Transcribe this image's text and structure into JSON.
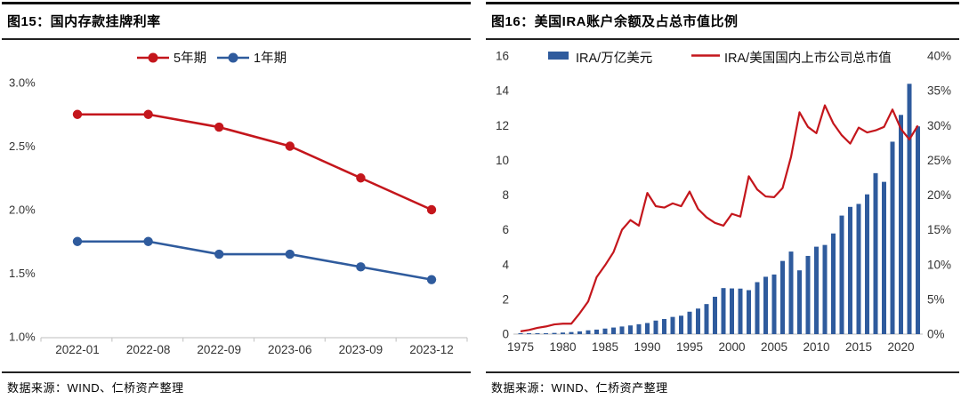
{
  "panels": {
    "fig15": {
      "title": "图15：国内存款挂牌利率",
      "source": "数据来源：WIND、仁桥资产整理"
    },
    "fig16": {
      "title": "图16：美国IRA账户余额及占总市值比例",
      "source": "数据来源：WIND、仁桥资产整理"
    }
  },
  "colors": {
    "red": "#c4161c",
    "blue": "#2f5b9d",
    "axis_text": "#333333",
    "axis_line": "#c9c9c9"
  },
  "chart_data": [
    {
      "type": "line",
      "title": "国内存款挂牌利率",
      "categories": [
        "2022-01",
        "2022-08",
        "2022-09",
        "2023-06",
        "2023-09",
        "2023-12"
      ],
      "series": [
        {
          "name": "5年期",
          "color": "#c4161c",
          "values": [
            2.75,
            2.75,
            2.65,
            2.5,
            2.25,
            2.0
          ]
        },
        {
          "name": "1年期",
          "color": "#2f5b9d",
          "values": [
            1.75,
            1.75,
            1.65,
            1.65,
            1.55,
            1.45
          ]
        }
      ],
      "ylim": [
        1.0,
        3.0
      ],
      "ytick_labels": [
        "1.0%",
        "1.5%",
        "2.0%",
        "2.5%",
        "3.0%"
      ],
      "yticks": [
        1.0,
        1.5,
        2.0,
        2.5,
        3.0
      ],
      "grid": false,
      "legend_position": "top"
    },
    {
      "type": "combo-bar-line",
      "title": "美国IRA账户余额及占总市值比例",
      "x": [
        1975,
        1976,
        1977,
        1978,
        1979,
        1980,
        1981,
        1982,
        1983,
        1984,
        1985,
        1986,
        1987,
        1988,
        1989,
        1990,
        1991,
        1992,
        1993,
        1994,
        1995,
        1996,
        1997,
        1998,
        1999,
        2000,
        2001,
        2002,
        2003,
        2004,
        2005,
        2006,
        2007,
        2008,
        2009,
        2010,
        2011,
        2012,
        2013,
        2014,
        2015,
        2016,
        2017,
        2018,
        2019,
        2020,
        2021,
        2022
      ],
      "xtick_labels": [
        "1975",
        "1980",
        "1985",
        "1990",
        "1995",
        "2000",
        "2005",
        "2010",
        "2015",
        "2020"
      ],
      "series": [
        {
          "name": "IRA/万亿美元",
          "type": "bar",
          "axis": "left",
          "color": "#2f5b9d",
          "values": [
            0.01,
            0.02,
            0.03,
            0.05,
            0.07,
            0.09,
            0.12,
            0.16,
            0.22,
            0.26,
            0.32,
            0.38,
            0.44,
            0.5,
            0.57,
            0.64,
            0.78,
            0.87,
            0.99,
            1.06,
            1.29,
            1.47,
            1.73,
            2.15,
            2.65,
            2.63,
            2.62,
            2.53,
            2.99,
            3.3,
            3.43,
            4.21,
            4.75,
            3.67,
            4.5,
            5.03,
            5.13,
            5.79,
            6.82,
            7.32,
            7.49,
            8.04,
            9.26,
            8.76,
            11.07,
            12.61,
            14.4,
            11.95
          ]
        },
        {
          "name": "IRA/美国国内上市公司总市值",
          "type": "line",
          "axis": "right",
          "color": "#c4161c",
          "values": [
            0.4,
            0.6,
            0.9,
            1.1,
            1.4,
            1.5,
            1.5,
            3.0,
            4.7,
            8.2,
            9.9,
            11.8,
            15.0,
            16.4,
            15.6,
            20.3,
            18.4,
            18.2,
            18.8,
            18.4,
            20.5,
            18.0,
            16.8,
            16.0,
            15.6,
            17.3,
            16.9,
            22.7,
            20.8,
            19.8,
            19.7,
            21.0,
            25.5,
            31.9,
            29.8,
            28.9,
            32.9,
            30.3,
            28.6,
            27.4,
            29.7,
            29.0,
            29.3,
            29.8,
            32.3,
            29.5,
            28.0,
            30.0
          ]
        }
      ],
      "left_axis": {
        "lim": [
          0,
          16
        ],
        "ticks": [
          0,
          2,
          4,
          6,
          8,
          10,
          12,
          14,
          16
        ],
        "tick_labels": [
          "0",
          "2",
          "4",
          "6",
          "8",
          "10",
          "12",
          "14",
          "16"
        ]
      },
      "right_axis": {
        "lim": [
          0,
          40
        ],
        "ticks": [
          0,
          5,
          10,
          15,
          20,
          25,
          30,
          35,
          40
        ],
        "tick_labels": [
          "0%",
          "5%",
          "10%",
          "15%",
          "20%",
          "25%",
          "30%",
          "35%",
          "40%"
        ]
      },
      "grid": false,
      "legend_position": "top"
    }
  ]
}
